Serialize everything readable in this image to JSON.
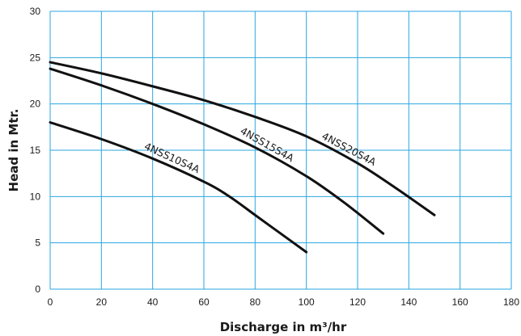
{
  "chart_data": {
    "type": "line",
    "xlabel": "Discharge in m³/hr",
    "ylabel": "Head in Mtr.",
    "xlim": [
      0,
      180
    ],
    "ylim": [
      0,
      30
    ],
    "xticks": [
      0,
      20,
      40,
      60,
      80,
      100,
      120,
      140,
      160,
      180
    ],
    "yticks": [
      0,
      5,
      10,
      15,
      20,
      25,
      30
    ],
    "grid": true,
    "grid_color": "#2aa6e0",
    "line_color": "#111111",
    "series": [
      {
        "name": "4NSS10S4A",
        "points": [
          [
            0,
            18
          ],
          [
            20,
            16.2
          ],
          [
            40,
            14.1
          ],
          [
            60,
            11.6
          ],
          [
            70,
            10.0
          ],
          [
            80,
            8.0
          ],
          [
            90,
            6.0
          ],
          [
            100,
            4.0
          ]
        ],
        "label_at": 47
      },
      {
        "name": "4NSS15S4A",
        "points": [
          [
            0,
            23.8
          ],
          [
            20,
            22.0
          ],
          [
            40,
            20.0
          ],
          [
            60,
            17.8
          ],
          [
            80,
            15.3
          ],
          [
            100,
            12.2
          ],
          [
            115,
            9.3
          ],
          [
            130,
            6.0
          ]
        ],
        "label_at": 84
      },
      {
        "name": "4NSS20S4A",
        "points": [
          [
            0,
            24.5
          ],
          [
            20,
            23.3
          ],
          [
            40,
            21.9
          ],
          [
            60,
            20.4
          ],
          [
            80,
            18.6
          ],
          [
            100,
            16.5
          ],
          [
            120,
            13.6
          ],
          [
            135,
            10.9
          ],
          [
            150,
            8.0
          ]
        ],
        "label_at": 116
      }
    ]
  }
}
